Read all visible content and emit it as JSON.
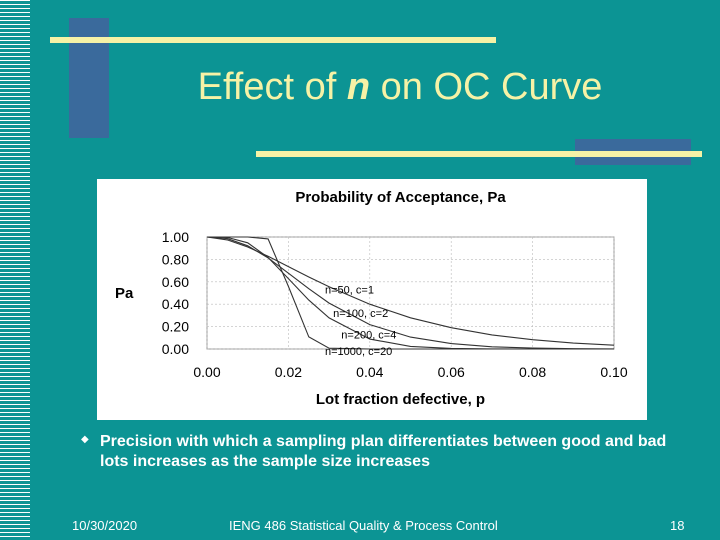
{
  "slide": {
    "title_pre": "Effect of ",
    "title_em": "n",
    "title_post": " on OC Curve",
    "bullet_icon": "diamond-bullet-icon",
    "bullet_text": "Precision with which a sampling plan differentiates between good and bad lots increases as the sample size increases",
    "footer_date": "10/30/2020",
    "footer_course": "IENG 486 Statistical Quality & Process Control",
    "footer_page": "18"
  },
  "colors": {
    "background": "#0c9494",
    "title": "#f6f2a6",
    "accent_line": "#f6f2a6",
    "accent_block": "#3a6a9c"
  },
  "chart_data": {
    "type": "line",
    "title": "Probability of Acceptance, Pa",
    "xlabel": "Lot fraction defective, p",
    "ylabel": "Pa",
    "xlim": [
      0,
      0.1
    ],
    "ylim": [
      0,
      1
    ],
    "xticks": [
      "0.00",
      "0.02",
      "0.04",
      "0.06",
      "0.08",
      "0.10"
    ],
    "yticks": [
      "0.00",
      "0.20",
      "0.40",
      "0.60",
      "0.80",
      "1.00"
    ],
    "grid": true,
    "x": [
      0,
      0.005,
      0.01,
      0.015,
      0.02,
      0.025,
      0.03,
      0.04,
      0.05,
      0.06,
      0.07,
      0.08,
      0.09,
      0.1
    ],
    "series": [
      {
        "name": "n=50, c=1",
        "label": "n=50, c=1",
        "values": [
          1.0,
          0.974,
          0.911,
          0.828,
          0.736,
          0.643,
          0.555,
          0.4,
          0.279,
          0.19,
          0.126,
          0.083,
          0.053,
          0.034
        ]
      },
      {
        "name": "n=100, c=2",
        "label": "n=100, c=2",
        "values": [
          1.0,
          0.986,
          0.921,
          0.813,
          0.677,
          0.538,
          0.41,
          0.218,
          0.106,
          0.048,
          0.02,
          0.008,
          0.003,
          0.001
        ]
      },
      {
        "name": "n=200, c=4",
        "label": "n=200, c=4",
        "values": [
          1.0,
          0.996,
          0.948,
          0.817,
          0.629,
          0.437,
          0.278,
          0.088,
          0.023,
          0.005,
          0.001,
          0.0,
          0.0,
          0.0
        ]
      },
      {
        "name": "n=1000, c=20",
        "label": "n=1000, c=20",
        "values": [
          1.0,
          1.0,
          1.0,
          0.983,
          0.559,
          0.108,
          0.007,
          0.0,
          0.0,
          0.0,
          0.0,
          0.0,
          0.0,
          0.0
        ]
      }
    ]
  }
}
